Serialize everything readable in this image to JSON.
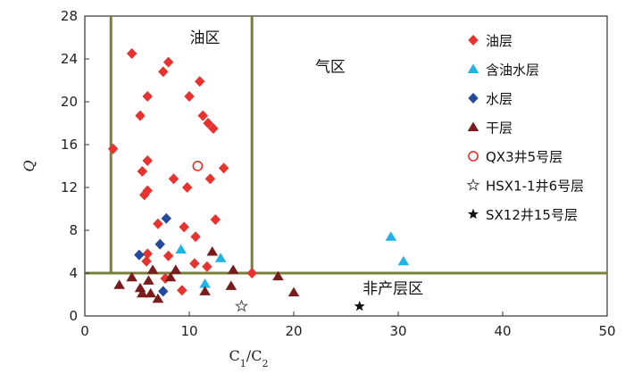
{
  "chart_data": {
    "type": "scatter",
    "xlabel_main": "C",
    "xlabel_sub1": "1",
    "xlabel_slash": "/C",
    "xlabel_sub2": "2",
    "ylabel": "Q",
    "xlim": [
      0,
      50
    ],
    "ylim": [
      0,
      28
    ],
    "xticks": [
      0,
      10,
      20,
      30,
      40,
      50
    ],
    "yticks": [
      0,
      4,
      8,
      12,
      16,
      20,
      24,
      28
    ],
    "grid": false,
    "legend_position": "top-right",
    "boundaries": {
      "oil_left_x": 2.5,
      "oil_right_x": 16,
      "horizontal_y": 4,
      "color": "#7a7f3a"
    },
    "regions": [
      {
        "label": "油区",
        "x": 11.5,
        "y": 25.5
      },
      {
        "label": "气区",
        "x": 23.5,
        "y": 22.8
      },
      {
        "label": "非产层区",
        "x": 29.5,
        "y": 2.1
      }
    ],
    "series": [
      {
        "name": "油层",
        "marker": "diamond",
        "color": "#e8322e",
        "points": [
          [
            4.5,
            24.5
          ],
          [
            8,
            23.7
          ],
          [
            7.5,
            22.8
          ],
          [
            11,
            21.9
          ],
          [
            6,
            20.5
          ],
          [
            10,
            20.5
          ],
          [
            11.3,
            18.7
          ],
          [
            5.3,
            18.7
          ],
          [
            11.8,
            18
          ],
          [
            12.3,
            17.5
          ],
          [
            2.7,
            15.6
          ],
          [
            6,
            14.5
          ],
          [
            5.5,
            13.5
          ],
          [
            13.3,
            13.8
          ],
          [
            8.5,
            12.8
          ],
          [
            12,
            12.8
          ],
          [
            9.8,
            12
          ],
          [
            6,
            11.7
          ],
          [
            5.7,
            11.3
          ],
          [
            12.5,
            9
          ],
          [
            7,
            8.6
          ],
          [
            9.5,
            8.3
          ],
          [
            10.6,
            7.4
          ],
          [
            6,
            5.8
          ],
          [
            8,
            5.6
          ],
          [
            5.9,
            5.1
          ],
          [
            10.5,
            4.9
          ],
          [
            11.7,
            4.6
          ],
          [
            7.7,
            3.5
          ],
          [
            9.3,
            2.4
          ],
          [
            16,
            4
          ]
        ]
      },
      {
        "name": "含油水层",
        "marker": "triangle",
        "color": "#22b3e6",
        "points": [
          [
            9.2,
            6.2
          ],
          [
            13,
            5.4
          ],
          [
            11.5,
            3
          ],
          [
            29.3,
            7.4
          ],
          [
            30.5,
            5.1
          ]
        ]
      },
      {
        "name": "水层",
        "marker": "diamond",
        "color": "#234a9e",
        "points": [
          [
            7.8,
            9.1
          ],
          [
            7.2,
            6.7
          ],
          [
            5.2,
            5.7
          ],
          [
            7.5,
            2.3
          ]
        ]
      },
      {
        "name": "干层",
        "marker": "triangle",
        "color": "#7a1c1c",
        "points": [
          [
            12.2,
            6
          ],
          [
            6.5,
            4.3
          ],
          [
            8.7,
            4.3
          ],
          [
            4.5,
            3.6
          ],
          [
            6.1,
            3.3
          ],
          [
            8.2,
            3.6
          ],
          [
            3.3,
            2.9
          ],
          [
            5.5,
            2.1
          ],
          [
            6.3,
            2.1
          ],
          [
            11.5,
            2.3
          ],
          [
            14,
            2.8
          ],
          [
            14.2,
            4.3
          ],
          [
            18.5,
            3.7
          ],
          [
            20,
            2.2
          ],
          [
            7,
            1.6
          ],
          [
            5.3,
            2.6
          ]
        ]
      },
      {
        "name": "QX3井5号层",
        "marker": "circle-open",
        "color": "#e8322e",
        "points": [
          [
            10.8,
            14
          ]
        ]
      },
      {
        "name": "HSX1-1井6号层",
        "marker": "star-open",
        "color": "#555555",
        "points": [
          [
            15,
            0.9
          ]
        ]
      },
      {
        "name": "SX12井15号层",
        "marker": "star",
        "color": "#111111",
        "points": [
          [
            26.3,
            0.9
          ]
        ]
      }
    ]
  }
}
